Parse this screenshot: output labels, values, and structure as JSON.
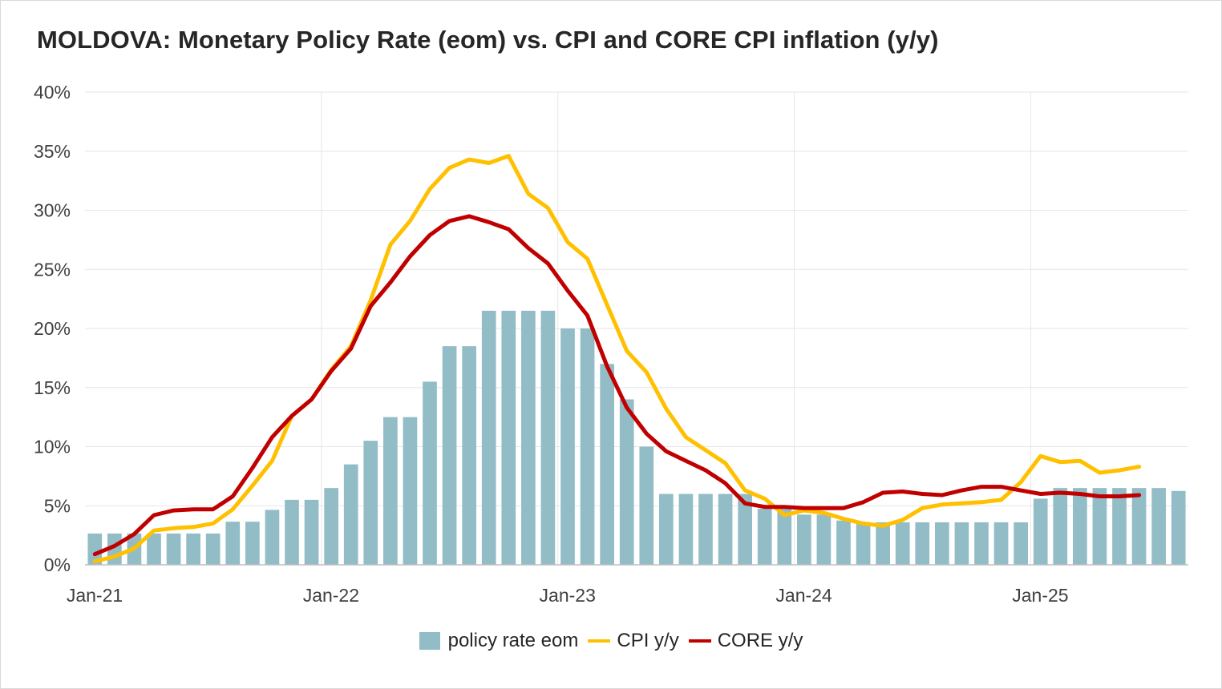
{
  "title": "MOLDOVA: Monetary Policy Rate (eom) vs. CPI and CORE CPI inflation (y/y)",
  "legend": {
    "bar_label": "policy rate eom",
    "cpi_label": "CPI y/y",
    "core_label": "CORE y/y"
  },
  "colors": {
    "bar": "#93bdc6",
    "cpi": "#ffc000",
    "core": "#c00000",
    "grid": "#e6e6e6",
    "axis": "#bfbfbf"
  },
  "chart_data": {
    "type": "bar+line",
    "x_start": "Jan-21",
    "x_tick_labels": [
      "Jan-21",
      "Jan-22",
      "Jan-23",
      "Jan-24",
      "Jan-25"
    ],
    "y_tick_labels": [
      "0%",
      "5%",
      "10%",
      "15%",
      "20%",
      "25%",
      "30%",
      "35%",
      "40%"
    ],
    "ylim": [
      0,
      40
    ],
    "grid": true,
    "legend_position": "bottom",
    "series": [
      {
        "name": "policy rate eom",
        "kind": "bar",
        "values": [
          2.65,
          2.65,
          2.65,
          2.65,
          2.65,
          2.65,
          2.65,
          3.65,
          3.65,
          4.65,
          5.5,
          5.5,
          6.5,
          8.5,
          10.5,
          12.5,
          12.5,
          15.5,
          18.5,
          18.5,
          21.5,
          21.5,
          21.5,
          21.5,
          20.0,
          20.0,
          17.0,
          14.0,
          10.0,
          6.0,
          6.0,
          6.0,
          6.0,
          6.0,
          4.75,
          4.75,
          4.25,
          4.25,
          3.75,
          3.6,
          3.6,
          3.6,
          3.6,
          3.6,
          3.6,
          3.6,
          3.6,
          3.6,
          5.6,
          6.5,
          6.5,
          6.5,
          6.5,
          6.5,
          6.5,
          6.25
        ]
      },
      {
        "name": "CPI y/y",
        "kind": "line",
        "values": [
          0.3,
          0.7,
          1.4,
          2.9,
          3.1,
          3.2,
          3.5,
          4.7,
          6.7,
          8.8,
          12.6,
          14.0,
          16.5,
          18.5,
          22.4,
          27.1,
          29.1,
          31.8,
          33.6,
          34.3,
          34.0,
          34.6,
          31.4,
          30.2,
          27.3,
          25.9,
          22.0,
          18.1,
          16.3,
          13.2,
          10.8,
          9.7,
          8.6,
          6.3,
          5.6,
          4.2,
          4.6,
          4.4,
          3.9,
          3.5,
          3.3,
          3.8,
          4.8,
          5.1,
          5.2,
          5.3,
          5.5,
          7.0,
          9.2,
          8.7,
          8.8,
          7.8,
          8.0,
          8.3
        ]
      },
      {
        "name": "CORE y/y",
        "kind": "line",
        "values": [
          0.9,
          1.6,
          2.6,
          4.2,
          4.6,
          4.7,
          4.7,
          5.8,
          8.2,
          10.8,
          12.6,
          14.0,
          16.4,
          18.3,
          21.9,
          23.9,
          26.1,
          27.9,
          29.1,
          29.5,
          29.0,
          28.4,
          26.8,
          25.5,
          23.2,
          21.1,
          16.8,
          13.3,
          11.1,
          9.6,
          8.8,
          8.0,
          6.9,
          5.2,
          4.9,
          4.9,
          4.8,
          4.8,
          4.8,
          5.3,
          6.1,
          6.2,
          6.0,
          5.9,
          6.3,
          6.6,
          6.6,
          6.3,
          6.0,
          6.1,
          6.0,
          5.8,
          5.8,
          5.9
        ]
      }
    ]
  }
}
